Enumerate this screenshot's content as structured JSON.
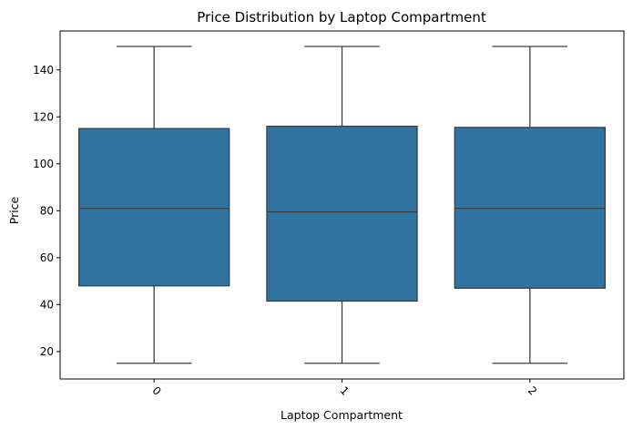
{
  "chart_data": {
    "type": "box",
    "title": "Price Distribution by Laptop Compartment",
    "xlabel": "Laptop Compartment",
    "ylabel": "Price",
    "categories": [
      "0",
      "1",
      "2"
    ],
    "boxes": [
      {
        "category": "0",
        "min": 15,
        "q1": 48,
        "median": 81,
        "q3": 115,
        "max": 150
      },
      {
        "category": "1",
        "min": 15,
        "q1": 41.5,
        "median": 79.5,
        "q3": 116,
        "max": 150
      },
      {
        "category": "2",
        "min": 15,
        "q1": 47,
        "median": 81,
        "q3": 115.5,
        "max": 150
      }
    ],
    "ylim": [
      8.3,
      156.6
    ],
    "yticks": [
      20,
      40,
      60,
      80,
      100,
      120,
      140
    ],
    "x_tick_rotation": 45,
    "grid": false,
    "legend": "none",
    "box_color": "#3274a1",
    "line_color": "#3d3d3d"
  }
}
